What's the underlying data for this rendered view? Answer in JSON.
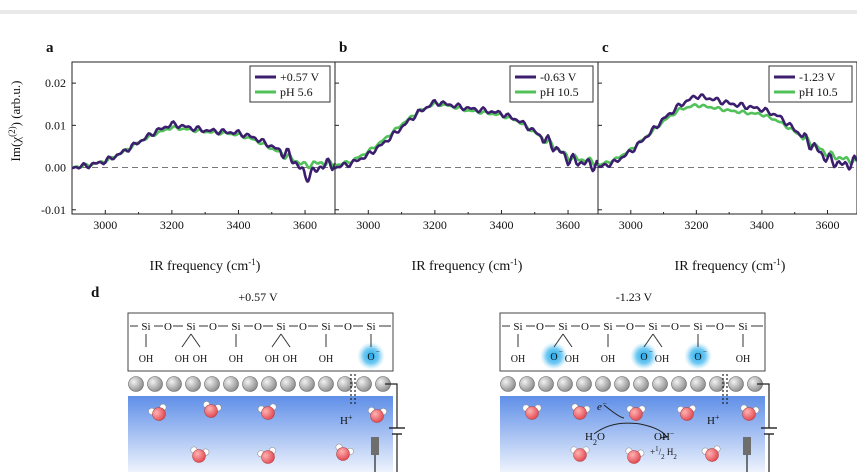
{
  "figure": {
    "panel_letters": [
      "a",
      "b",
      "c",
      "d"
    ],
    "ylabel_prefix": "Im(χ",
    "ylabel_sup": "(2)",
    "ylabel_suffix": ") (arb.u.)",
    "xlabel_prefix": "IR frequency (cm",
    "xlabel_sup": "-1",
    "xlabel_suffix": ")",
    "colors": {
      "dark_series": "#3b1f6e",
      "green_series": "#52c15a",
      "water_band_top": "#5f8fe8",
      "hydroxide_glow": "#1fa8e8"
    }
  },
  "chart_data": [
    {
      "type": "line",
      "panel": "a",
      "x_ticks": [
        3000,
        3200,
        3400,
        3600
      ],
      "y_ticks": [
        "0.02",
        "0.01",
        "0.00",
        "-0.01"
      ],
      "xlim": [
        2900,
        3690
      ],
      "ylim": [
        -0.011,
        0.025
      ],
      "zero_line": "dashed",
      "legend": "top-right",
      "series": [
        {
          "name": "+0.57 V",
          "color": "#3b1f6e",
          "x": [
            2900,
            2950,
            3000,
            3050,
            3100,
            3150,
            3200,
            3250,
            3300,
            3350,
            3400,
            3450,
            3500,
            3550,
            3580,
            3600,
            3620,
            3650,
            3690
          ],
          "y": [
            0.0,
            0.0005,
            0.0015,
            0.0035,
            0.006,
            0.0085,
            0.0103,
            0.0095,
            0.0088,
            0.0085,
            0.0082,
            0.007,
            0.005,
            0.003,
            0.0005,
            -0.002,
            -0.0015,
            0.0005,
            0.001
          ]
        },
        {
          "name": "pH 5.6",
          "color": "#52c15a",
          "x": [
            2900,
            2950,
            3000,
            3050,
            3100,
            3150,
            3200,
            3250,
            3300,
            3350,
            3400,
            3450,
            3500,
            3550,
            3600,
            3650,
            3690
          ],
          "y": [
            0.0,
            0.0006,
            0.0015,
            0.0035,
            0.006,
            0.008,
            0.0095,
            0.009,
            0.0085,
            0.0082,
            0.0078,
            0.0065,
            0.0045,
            0.0025,
            0.0005,
            0.0012,
            0.0006
          ]
        }
      ]
    },
    {
      "type": "line",
      "panel": "b",
      "x_ticks": [
        3000,
        3200,
        3400,
        3600
      ],
      "xlim": [
        2900,
        3690
      ],
      "ylim": [
        -0.011,
        0.025
      ],
      "zero_line": "dashed",
      "legend": "top-right",
      "series": [
        {
          "name": "-0.63 V",
          "color": "#3b1f6e",
          "x": [
            2900,
            2950,
            3000,
            3050,
            3100,
            3150,
            3200,
            3250,
            3300,
            3350,
            3400,
            3450,
            3500,
            3550,
            3600,
            3650,
            3690
          ],
          "y": [
            0.0,
            0.001,
            0.003,
            0.006,
            0.0095,
            0.013,
            0.0155,
            0.0148,
            0.014,
            0.0135,
            0.0128,
            0.0112,
            0.0085,
            0.0055,
            0.002,
            0.001,
            0.0005
          ]
        },
        {
          "name": "pH 10.5",
          "color": "#52c15a",
          "x": [
            2900,
            2950,
            3000,
            3050,
            3100,
            3150,
            3200,
            3250,
            3300,
            3350,
            3400,
            3450,
            3500,
            3550,
            3600,
            3650,
            3690
          ],
          "y": [
            0.0005,
            0.0015,
            0.0038,
            0.0068,
            0.0102,
            0.0132,
            0.0152,
            0.0145,
            0.0135,
            0.013,
            0.0124,
            0.011,
            0.0083,
            0.0055,
            0.0025,
            0.0018,
            0.0012
          ]
        }
      ]
    },
    {
      "type": "line",
      "panel": "c",
      "x_ticks": [
        3000,
        3200,
        3400,
        3600
      ],
      "xlim": [
        2900,
        3690
      ],
      "ylim": [
        -0.011,
        0.025
      ],
      "zero_line": "dashed",
      "legend": "top-right",
      "series": [
        {
          "name": "-1.23 V",
          "color": "#3b1f6e",
          "x": [
            2900,
            2950,
            3000,
            3050,
            3100,
            3150,
            3200,
            3250,
            3300,
            3350,
            3400,
            3450,
            3500,
            3550,
            3600,
            3650,
            3690
          ],
          "y": [
            0.0,
            0.0012,
            0.0038,
            0.0075,
            0.0115,
            0.0148,
            0.017,
            0.0162,
            0.0152,
            0.0145,
            0.0138,
            0.0122,
            0.009,
            0.0055,
            0.002,
            0.0005,
            0.0015
          ]
        },
        {
          "name": "pH 10.5",
          "color": "#52c15a",
          "x": [
            2900,
            2950,
            3000,
            3050,
            3100,
            3150,
            3200,
            3250,
            3300,
            3350,
            3400,
            3450,
            3500,
            3550,
            3600,
            3650,
            3690
          ],
          "y": [
            0.0005,
            0.0018,
            0.0042,
            0.0075,
            0.011,
            0.0138,
            0.0148,
            0.0142,
            0.0135,
            0.013,
            0.0126,
            0.011,
            0.0085,
            0.0058,
            0.0032,
            0.002,
            0.0015
          ]
        }
      ]
    }
  ],
  "schematic": {
    "left_potential": "+0.57 V",
    "right_potential": "-1.23 V",
    "si": "Si",
    "o": "O",
    "oh": "OH",
    "o_minus": "O",
    "o_minus_sup": "−",
    "h_plus": "H",
    "h_plus_sup": "+",
    "electron": "e",
    "electron_sup": "−",
    "h2o": "H",
    "h2o_sub": "2",
    "h2o_end": "O",
    "oh_minus": "OH",
    "oh_minus_sup": "−",
    "half_h2": "+",
    "half_h2_frac": "1",
    "half_h2_den": "2",
    "half_h2_h": "H",
    "half_h2_sub": "2"
  }
}
